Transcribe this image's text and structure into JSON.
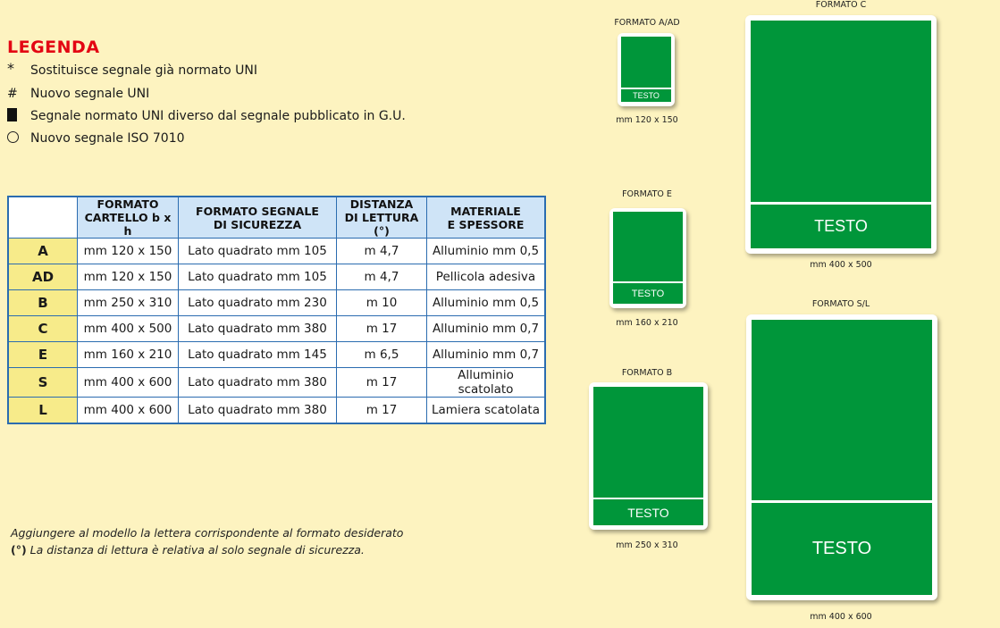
{
  "legend": {
    "title": "LEGENDA",
    "items": [
      {
        "symbol": "*",
        "text": "Sostituisce segnale già normato UNI"
      },
      {
        "symbol": "#",
        "text": "Nuovo segnale UNI"
      },
      {
        "symbol": "filled-square",
        "text": "Segnale normato UNI diverso dal segnale pubblicato in G.U."
      },
      {
        "symbol": "circle",
        "text": "Nuovo segnale ISO 7010"
      }
    ]
  },
  "table": {
    "headers": [
      "FORMATO\nCARTELLO b x h",
      "FORMATO SEGNALE\nDI SICUREZZA",
      "DISTANZA\nDI LETTURA (°)",
      "MATERIALE\nE SPESSORE"
    ],
    "rows": [
      {
        "code": "A",
        "cartello": "mm 120 x 150",
        "segnale": "Lato quadrato mm 105",
        "distanza": "m 4,7",
        "materiale": "Alluminio mm 0,5"
      },
      {
        "code": "AD",
        "cartello": "mm 120 x 150",
        "segnale": "Lato quadrato mm 105",
        "distanza": "m 4,7",
        "materiale": "Pellicola adesiva"
      },
      {
        "code": "B",
        "cartello": "mm 250 x 310",
        "segnale": "Lato quadrato mm 230",
        "distanza": "m 10",
        "materiale": "Alluminio mm 0,5"
      },
      {
        "code": "C",
        "cartello": "mm 400 x 500",
        "segnale": "Lato quadrato mm 380",
        "distanza": "m 17",
        "materiale": "Alluminio mm 0,7"
      },
      {
        "code": "E",
        "cartello": "mm 160 x 210",
        "segnale": "Lato quadrato mm 145",
        "distanza": "m 6,5",
        "materiale": "Alluminio mm 0,7"
      },
      {
        "code": "S",
        "cartello": "mm 400 x 600",
        "segnale": "Lato quadrato mm 380",
        "distanza": "m 17",
        "materiale": "Alluminio scatolato"
      },
      {
        "code": "L",
        "cartello": "mm 400 x 600",
        "segnale": "Lato quadrato mm 380",
        "distanza": "m 17",
        "materiale": "Lamiera scatolata"
      }
    ]
  },
  "footnotes": {
    "line1": "Aggiungere al modello la lettera corrispondente al formato desiderato",
    "line2_mark": "(°)",
    "line2": " La distanza di lettura è relativa al solo segnale di sicurezza."
  },
  "formats": [
    {
      "title": "FORMATO A/AD",
      "text": "TESTO",
      "size": "mm 120 x 150"
    },
    {
      "title": "FORMATO E",
      "text": "TESTO",
      "size": "mm 160 x 210"
    },
    {
      "title": "FORMATO B",
      "text": "TESTO",
      "size": "mm 250 x 310"
    },
    {
      "title": "FORMATO C",
      "text": "TESTO",
      "size": "mm 400 x 500"
    },
    {
      "title": "FORMATO S/L",
      "text": "TESTO",
      "size": "mm 400 x 600"
    }
  ],
  "colors": {
    "sign_green": "#00963a",
    "legend_red": "#e30613",
    "table_border": "#2b6cb0",
    "header_bg": "#cfe4f7",
    "code_bg": "#f7eb8a",
    "page_bg": "#fdf3c0"
  }
}
